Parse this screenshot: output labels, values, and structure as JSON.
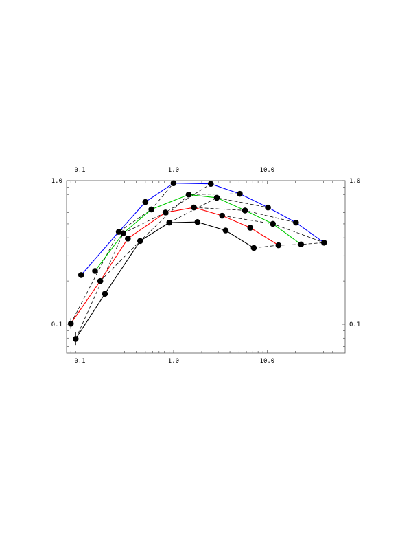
{
  "chart_data": {
    "type": "line",
    "title": "",
    "xlabel": "",
    "ylabel": "",
    "x_scale": "log",
    "y_scale": "log",
    "xlim": [
      0.072,
      68
    ],
    "ylim": [
      0.063,
      1.0
    ],
    "x_ticks": [
      {
        "value": 0.1,
        "label": "0.1"
      },
      {
        "value": 1.0,
        "label": "1.0"
      },
      {
        "value": 10.0,
        "label": "10.0"
      }
    ],
    "y_ticks": [
      {
        "value": 0.1,
        "label": "0.1"
      },
      {
        "value": 1.0,
        "label": "1.0"
      }
    ],
    "grid": false,
    "legend": false,
    "series": [
      {
        "color": "#0000ff",
        "style": "solid",
        "x": [
          0.103,
          0.26,
          0.5,
          1.0,
          2.5,
          5.1,
          10.2,
          20.3,
          40.5
        ],
        "y": [
          0.22,
          0.44,
          0.71,
          0.96,
          0.95,
          0.81,
          0.65,
          0.51,
          0.37
        ]
      },
      {
        "color": "#00cc00",
        "style": "solid",
        "x": [
          0.145,
          0.29,
          0.58,
          1.45,
          2.9,
          5.8,
          11.5,
          23.0
        ],
        "y": [
          0.235,
          0.43,
          0.63,
          0.8,
          0.76,
          0.62,
          0.5,
          0.36
        ]
      },
      {
        "color": "#ff0000",
        "style": "solid",
        "x": [
          0.08,
          0.165,
          0.325,
          0.82,
          1.65,
          3.3,
          6.6,
          13.2
        ],
        "y": [
          0.101,
          0.2,
          0.395,
          0.6,
          0.65,
          0.57,
          0.47,
          0.355
        ]
      },
      {
        "color": "#000000",
        "style": "solid",
        "x": [
          0.09,
          0.185,
          0.44,
          0.9,
          1.8,
          3.6,
          7.2
        ],
        "y": [
          0.079,
          0.163,
          0.38,
          0.51,
          0.515,
          0.45,
          0.34
        ]
      },
      {
        "color": "#000000",
        "style": "dashed",
        "x": [
          0.08,
          0.26,
          0.58,
          1.0
        ],
        "y": [
          0.101,
          0.44,
          0.63,
          0.96
        ]
      },
      {
        "color": "#000000",
        "style": "dashed",
        "x": [
          0.09,
          0.29,
          0.82,
          2.5
        ],
        "y": [
          0.079,
          0.43,
          0.6,
          0.95
        ]
      },
      {
        "color": "#000000",
        "style": "dashed",
        "x": [
          0.165,
          0.44,
          1.45,
          5.1
        ],
        "y": [
          0.2,
          0.38,
          0.8,
          0.81
        ]
      },
      {
        "color": "#000000",
        "style": "dashed",
        "x": [
          0.9,
          2.9,
          10.2
        ],
        "y": [
          0.51,
          0.76,
          0.65
        ]
      },
      {
        "color": "#000000",
        "style": "dashed",
        "x": [
          1.65,
          5.8,
          20.3
        ],
        "y": [
          0.65,
          0.62,
          0.51
        ]
      },
      {
        "color": "#000000",
        "style": "dashed",
        "x": [
          3.3,
          11.5,
          40.5
        ],
        "y": [
          0.57,
          0.5,
          0.37
        ]
      },
      {
        "color": "#000000",
        "style": "dashed",
        "x": [
          7.2,
          13.2,
          23.0,
          40.5
        ],
        "y": [
          0.34,
          0.355,
          0.36,
          0.37
        ]
      }
    ],
    "error_bars": [
      {
        "x": 0.08,
        "y": 0.101,
        "ylow": 0.093,
        "yhigh": 0.11
      },
      {
        "x": 0.09,
        "y": 0.079,
        "ylow": 0.071,
        "yhigh": 0.088
      }
    ]
  }
}
